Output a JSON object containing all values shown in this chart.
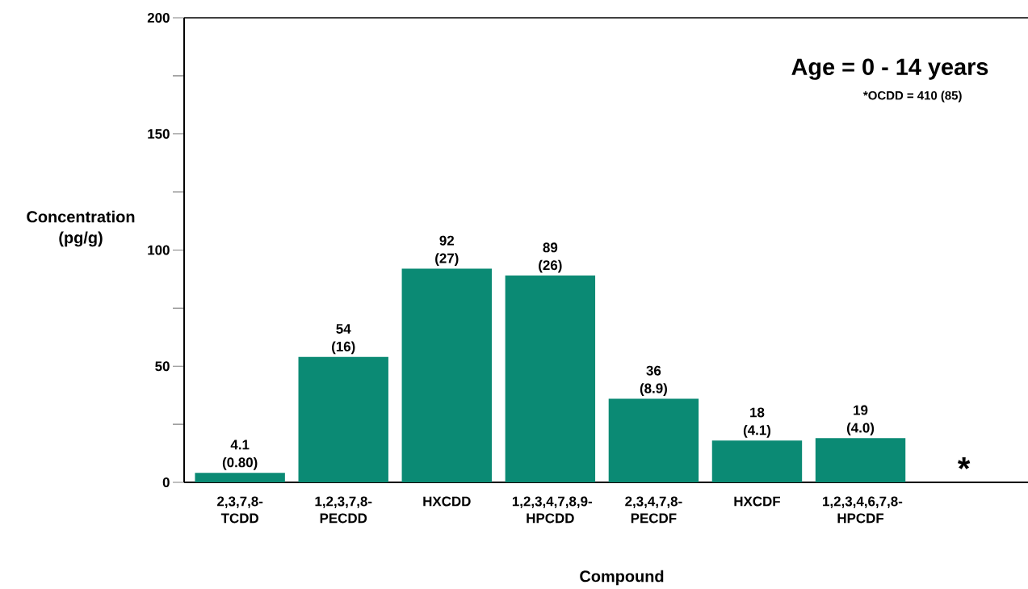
{
  "chart_data": {
    "type": "bar",
    "title": "Age = 0 - 14 years",
    "annotations": [
      "*OCDD = 410 (85)"
    ],
    "xlabel": "Compound",
    "ylabel": "Concentration (pg/g)",
    "categories": [
      "2,3,7,8-TCDD",
      "1,2,3,7,8-PECDD",
      "HXCDD",
      "1,2,3,4,7,8,9-HPCDD",
      "2,3,4,7,8-PECDF",
      "HXCDF",
      "1,2,3,4,6,7,8-HPCDF",
      null
    ],
    "values": [
      4.1,
      54,
      92,
      89,
      36,
      18,
      19,
      null
    ],
    "value_labels": [
      "4.1 (0.80)",
      "54 (16)",
      "92 (27)",
      "89 (26)",
      "36 (8.9)",
      "18 (4.1)",
      "19 (4.0)",
      "*"
    ],
    "color": "#0b8a74",
    "ylim": [
      0,
      200
    ],
    "yticks": [
      0,
      {
        "value": 25,
        "label": null
      },
      50,
      {
        "value": 75,
        "label": null
      },
      100,
      {
        "value": 125,
        "label": null
      },
      150,
      {
        "value": 175,
        "label": null
      },
      200
    ],
    "grid": false
  }
}
